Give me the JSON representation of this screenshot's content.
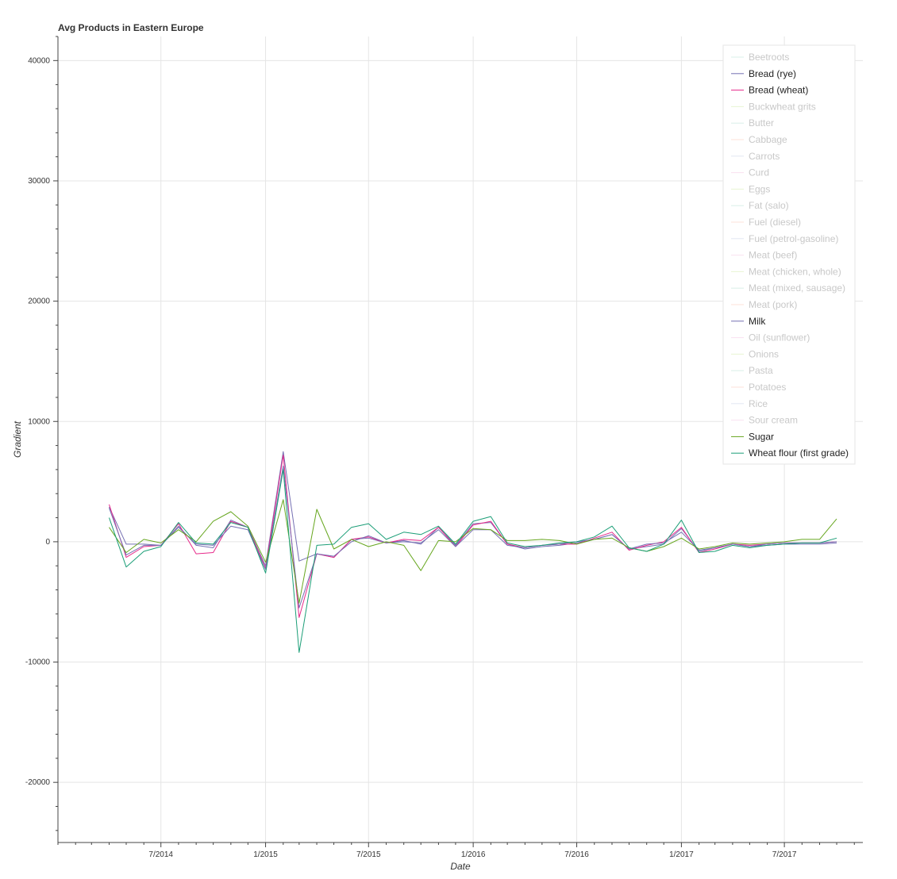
{
  "chart_data": {
    "type": "line",
    "title": "Avg Products in Eastern Europe",
    "xlabel": "Date",
    "ylabel": "Gradient",
    "x_ticks": [
      "7/2014",
      "1/2015",
      "7/2015",
      "1/2016",
      "7/2016",
      "1/2017",
      "7/2017"
    ],
    "x_tick_dates": [
      "2014-07-01",
      "2015-01-01",
      "2015-07-01",
      "2016-01-01",
      "2016-07-01",
      "2017-01-01",
      "2017-07-01"
    ],
    "y_ticks": [
      -20000,
      -10000,
      0,
      10000,
      20000,
      30000,
      40000
    ],
    "x_range": [
      "2014-01-01",
      "2017-11-16"
    ],
    "ylim": [
      -25000,
      42000
    ],
    "grid": true,
    "legend_position": "top-right",
    "x": [
      "2014-04-01",
      "2014-05-01",
      "2014-06-01",
      "2014-07-01",
      "2014-08-01",
      "2014-09-01",
      "2014-10-01",
      "2014-11-01",
      "2014-12-01",
      "2015-01-01",
      "2015-02-01",
      "2015-03-01",
      "2015-04-01",
      "2015-05-01",
      "2015-06-01",
      "2015-07-01",
      "2015-08-01",
      "2015-09-01",
      "2015-10-01",
      "2015-11-01",
      "2015-12-01",
      "2016-01-01",
      "2016-02-01",
      "2016-03-01",
      "2016-04-01",
      "2016-05-01",
      "2016-06-01",
      "2016-07-01",
      "2016-08-01",
      "2016-09-01",
      "2016-10-01",
      "2016-11-01",
      "2016-12-01",
      "2017-01-01",
      "2017-02-01",
      "2017-03-01",
      "2017-04-01",
      "2017-05-01",
      "2017-06-01",
      "2017-07-01",
      "2017-08-01",
      "2017-09-01",
      "2017-10-01"
    ],
    "series": [
      {
        "name": "Beetroots",
        "color": "#66c2a5",
        "muted": true,
        "values": null
      },
      {
        "name": "Bread (rye)",
        "color": "#7570b3",
        "muted": false,
        "values": [
          2900,
          -200,
          -200,
          -300,
          1300,
          -300,
          -500,
          1800,
          1200,
          -2000,
          7500,
          -1600,
          -1000,
          -1300,
          200,
          300,
          -100,
          100,
          -200,
          1200,
          -300,
          1500,
          1600,
          -200,
          -600,
          -400,
          -300,
          -100,
          200,
          600,
          -600,
          -400,
          -200,
          1100,
          -800,
          -500,
          -200,
          -400,
          -300,
          -200,
          -200,
          -200,
          -100
        ]
      },
      {
        "name": "Bread (wheat)",
        "color": "#e7298a",
        "muted": false,
        "values": [
          3100,
          -1300,
          -400,
          -300,
          1500,
          -1000,
          -900,
          1700,
          1200,
          -2200,
          7200,
          -6300,
          -1000,
          -1300,
          200,
          400,
          -100,
          200,
          100,
          1200,
          -400,
          1400,
          1700,
          -200,
          -500,
          -300,
          -200,
          -200,
          300,
          800,
          -700,
          -300,
          0,
          1200,
          -900,
          -600,
          -200,
          -300,
          -200,
          -100,
          -100,
          -100,
          0
        ]
      },
      {
        "name": "Buckwheat grits",
        "color": "#a6d854",
        "muted": true,
        "values": null
      },
      {
        "name": "Butter",
        "color": "#66c2a5",
        "muted": true,
        "values": null
      },
      {
        "name": "Cabbage",
        "color": "#fc8d62",
        "muted": true,
        "values": null
      },
      {
        "name": "Carrots",
        "color": "#8da0cb",
        "muted": true,
        "values": null
      },
      {
        "name": "Curd",
        "color": "#e78ac3",
        "muted": true,
        "values": null
      },
      {
        "name": "Eggs",
        "color": "#a6d854",
        "muted": true,
        "values": null
      },
      {
        "name": "Fat (salo)",
        "color": "#66c2a5",
        "muted": true,
        "values": null
      },
      {
        "name": "Fuel (diesel)",
        "color": "#fc8d62",
        "muted": true,
        "values": null
      },
      {
        "name": "Fuel (petrol-gasoline)",
        "color": "#8da0cb",
        "muted": true,
        "values": null
      },
      {
        "name": "Meat (beef)",
        "color": "#e78ac3",
        "muted": true,
        "values": null
      },
      {
        "name": "Meat (chicken, whole)",
        "color": "#a6d854",
        "muted": true,
        "values": null
      },
      {
        "name": "Meat (mixed, sausage)",
        "color": "#66c2a5",
        "muted": true,
        "values": null
      },
      {
        "name": "Meat (pork)",
        "color": "#fc8d62",
        "muted": true,
        "values": null
      },
      {
        "name": "Milk",
        "color": "#7570b3",
        "muted": false,
        "values": [
          2800,
          -1100,
          -300,
          -300,
          1200,
          -200,
          -300,
          1300,
          1000,
          -2300,
          6300,
          -5500,
          -1000,
          -1200,
          0,
          500,
          -100,
          0,
          -100,
          1000,
          -400,
          1000,
          1000,
          -300,
          -500,
          -300,
          -200,
          0,
          200,
          600,
          -600,
          -200,
          -100,
          800,
          -700,
          -500,
          -200,
          -400,
          -200,
          -100,
          -100,
          -100,
          0
        ]
      },
      {
        "name": "Oil (sunflower)",
        "color": "#e78ac3",
        "muted": true,
        "values": null
      },
      {
        "name": "Onions",
        "color": "#a6d854",
        "muted": true,
        "values": null
      },
      {
        "name": "Pasta",
        "color": "#66c2a5",
        "muted": true,
        "values": null
      },
      {
        "name": "Potatoes",
        "color": "#fc8d62",
        "muted": true,
        "values": null
      },
      {
        "name": "Rice",
        "color": "#8da0cb",
        "muted": true,
        "values": null
      },
      {
        "name": "Sour cream",
        "color": "#e78ac3",
        "muted": true,
        "values": null
      },
      {
        "name": "Sugar",
        "color": "#66a61e",
        "muted": false,
        "values": [
          1200,
          -900,
          200,
          -100,
          1000,
          0,
          1700,
          2500,
          1300,
          -1700,
          3500,
          -5100,
          2700,
          -600,
          200,
          -400,
          0,
          -300,
          -2400,
          100,
          0,
          1100,
          1000,
          100,
          100,
          200,
          100,
          -200,
          200,
          300,
          -500,
          -800,
          -400,
          300,
          -600,
          -400,
          -100,
          -200,
          -100,
          0,
          200,
          200,
          1900
        ]
      },
      {
        "name": "Wheat flour (first grade)",
        "color": "#1b9e77",
        "muted": false,
        "values": [
          2000,
          -2100,
          -800,
          -400,
          1600,
          -100,
          -200,
          1600,
          1200,
          -2600,
          6000,
          -9200,
          -300,
          -200,
          1200,
          1500,
          200,
          800,
          600,
          1300,
          -200,
          1700,
          2100,
          -100,
          -400,
          -300,
          -100,
          0,
          400,
          1300,
          -500,
          -800,
          -200,
          1800,
          -900,
          -800,
          -300,
          -500,
          -300,
          -200,
          -100,
          -100,
          300
        ]
      }
    ]
  }
}
